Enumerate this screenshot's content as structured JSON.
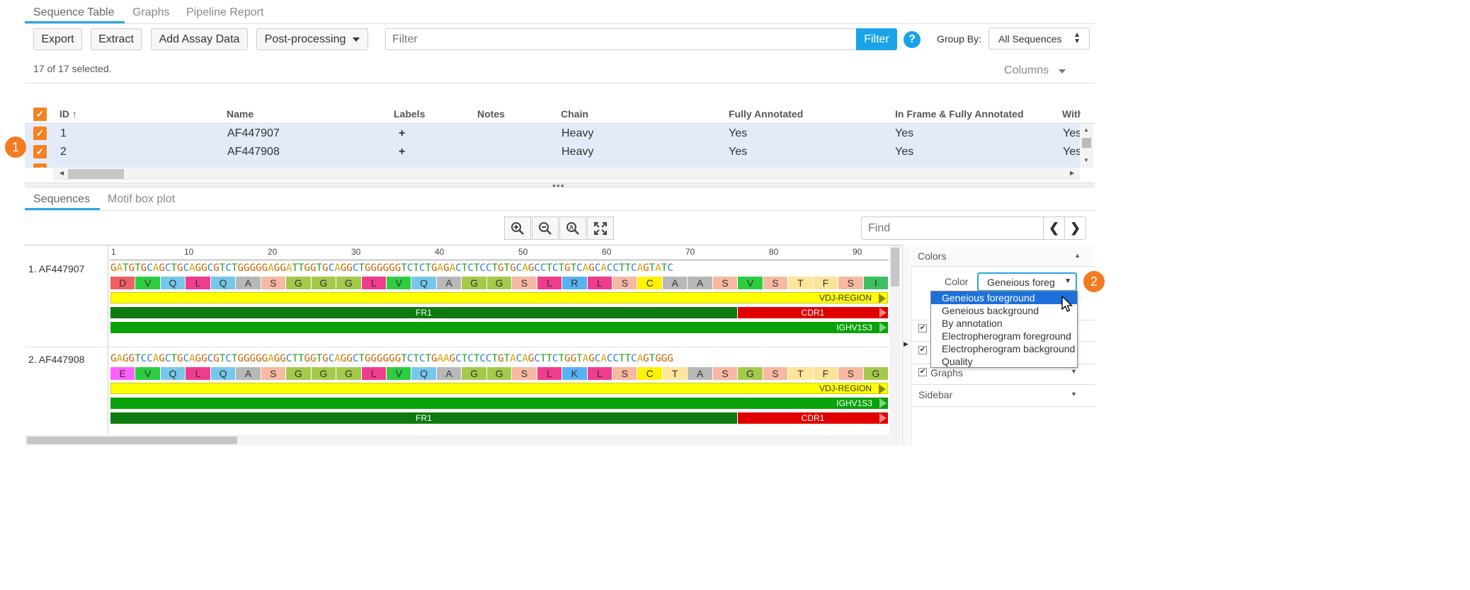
{
  "top_tabs": [
    "Sequence Table",
    "Graphs",
    "Pipeline Report"
  ],
  "toolbar": {
    "export": "Export",
    "extract": "Extract",
    "add_assay": "Add Assay Data",
    "post_processing": "Post-processing",
    "filter_placeholder": "Filter",
    "filter_button": "Filter",
    "help": "?",
    "group_by_label": "Group By:",
    "group_by_value": "All Sequences"
  },
  "selection_status": "17 of 17 selected.",
  "columns_label": "Columns",
  "table": {
    "headers": [
      "ID",
      "Name",
      "Labels",
      "Notes",
      "Chain",
      "Fully Annotated",
      "In Frame & Fully Annotated",
      "Withou"
    ],
    "rows": [
      {
        "id": "1",
        "name": "AF447907",
        "labels": "+",
        "chain": "Heavy",
        "fully": "Yes",
        "inframe": "Yes",
        "without": "Yes"
      },
      {
        "id": "2",
        "name": "AF447908",
        "labels": "+",
        "chain": "Heavy",
        "fully": "Yes",
        "inframe": "Yes",
        "without": "Yes"
      }
    ]
  },
  "bottom_tabs": [
    "Sequences",
    "Motif box plot"
  ],
  "find_placeholder": "Find",
  "ruler": [
    "1",
    "10",
    "20",
    "30",
    "40",
    "50",
    "60",
    "70",
    "80",
    "90"
  ],
  "sequences": [
    {
      "label": "1. AF447907",
      "dna": "GATGTGCAGCTGCAGGCGTCTGGGGGAGGATTGGTGCAGGCTGGGGGGTCTCTGAGACTCTCCTGTGCAGCCTCTGTCAGCACCTTCAGTATC",
      "aa": [
        "D",
        "V",
        "Q",
        "L",
        "Q",
        "A",
        "S",
        "G",
        "G",
        "G",
        "L",
        "V",
        "Q",
        "A",
        "G",
        "G",
        "S",
        "L",
        "R",
        "L",
        "S",
        "C",
        "A",
        "A",
        "S",
        "V",
        "S",
        "T",
        "F",
        "S",
        "I"
      ],
      "annotations": [
        "VDJ-REGION",
        "FR1",
        "CDR1",
        "IGHV1S3"
      ]
    },
    {
      "label": "2. AF447908",
      "dna": "GAGGTCCAGCTGCAGGCGTCTGGGGGAGGCTTGGTGCAGGCTGGGGGGTCTCTGAAGCTCTCCTGTACAGCTTCTGGTAGCACCTTCAGTGGG",
      "aa": [
        "E",
        "V",
        "Q",
        "L",
        "Q",
        "A",
        "S",
        "G",
        "G",
        "G",
        "L",
        "V",
        "Q",
        "A",
        "G",
        "G",
        "S",
        "L",
        "K",
        "L",
        "S",
        "C",
        "T",
        "A",
        "S",
        "G",
        "S",
        "T",
        "F",
        "S",
        "G"
      ],
      "annotations": [
        "VDJ-REGION",
        "IGHV1S3",
        "FR1",
        "CDR1"
      ]
    }
  ],
  "side_panel": {
    "colors_header": "Colors",
    "color_label": "Color",
    "color_value": "Geneious foreg",
    "options": [
      "Geneious foreground",
      "Geneious background",
      "By annotation",
      "Electropherogram foreground",
      "Electropherogram background",
      "Quality"
    ],
    "graphs": "Graphs",
    "sidebar": "Sidebar"
  },
  "badges": [
    "1",
    "2"
  ],
  "colors": {
    "accent": "#29a6e0",
    "orange": "#f58220",
    "selected_row": "#e2ebf7"
  }
}
